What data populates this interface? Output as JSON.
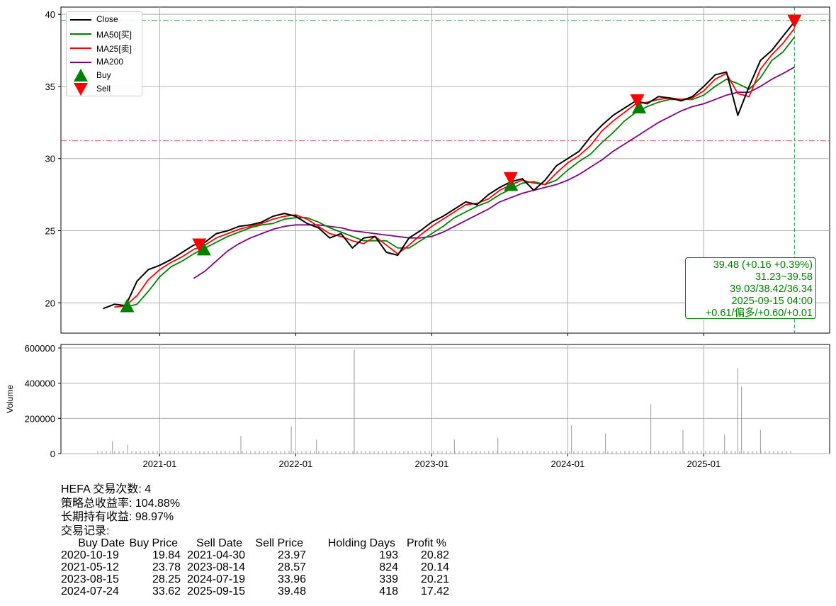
{
  "chart_data": [
    {
      "type": "line",
      "ylim": [
        17.9,
        40.5
      ],
      "xlim": [
        "2020-06-10",
        "2025-11-20"
      ],
      "grid": true,
      "y_ticks": [
        "20",
        "25",
        "30",
        "35",
        "40"
      ],
      "y_tick_values": [
        20,
        25,
        30,
        35,
        40
      ],
      "x_ticks": [
        "2021-01",
        "2022-01",
        "2023-01",
        "2024-01",
        "2025-01"
      ],
      "legend_position": "top-left",
      "legend": [
        "Close",
        "MA50[买]",
        "MA25[卖]",
        "MA200",
        "Buy",
        "Sell"
      ],
      "colors": {
        "Close": "#000000",
        "MA50": "#008000",
        "MA25": "#ff0000",
        "MA200": "#800080",
        "Buy": "#008000",
        "Sell": "#ff0000"
      },
      "dates": [
        "2020-08",
        "2020-09",
        "2020-10",
        "2020-11",
        "2020-12",
        "2021-01",
        "2021-02",
        "2021-03",
        "2021-04",
        "2021-05",
        "2021-06",
        "2021-07",
        "2021-08",
        "2021-09",
        "2021-10",
        "2021-11",
        "2021-12",
        "2022-01",
        "2022-02",
        "2022-03",
        "2022-04",
        "2022-05",
        "2022-06",
        "2022-07",
        "2022-08",
        "2022-09",
        "2022-10",
        "2022-11",
        "2022-12",
        "2023-01",
        "2023-02",
        "2023-03",
        "2023-04",
        "2023-05",
        "2023-06",
        "2023-07",
        "2023-08",
        "2023-09",
        "2023-10",
        "2023-11",
        "2023-12",
        "2024-01",
        "2024-02",
        "2024-03",
        "2024-04",
        "2024-05",
        "2024-06",
        "2024-07",
        "2024-08",
        "2024-09",
        "2024-10",
        "2024-11",
        "2024-12",
        "2025-01",
        "2025-02",
        "2025-03",
        "2025-04",
        "2025-05",
        "2025-06",
        "2025-07",
        "2025-08",
        "2025-09-15"
      ],
      "series": [
        {
          "name": "Close",
          "values": [
            19.6,
            19.9,
            19.8,
            21.5,
            22.3,
            22.6,
            23.0,
            23.5,
            24.0,
            24.2,
            24.8,
            25.0,
            25.3,
            25.4,
            25.6,
            26.0,
            26.2,
            26.0,
            25.5,
            25.2,
            24.5,
            24.8,
            23.8,
            24.5,
            24.6,
            23.5,
            23.3,
            24.5,
            25.0,
            25.6,
            26.0,
            26.5,
            27.0,
            26.8,
            27.5,
            28.0,
            28.4,
            28.6,
            27.8,
            28.5,
            29.5,
            30.0,
            30.5,
            31.5,
            32.3,
            33.0,
            33.5,
            34.0,
            33.8,
            34.3,
            34.2,
            34.0,
            34.3,
            35.0,
            35.8,
            36.0,
            33.0,
            35.0,
            36.8,
            37.5,
            38.5,
            39.48
          ]
        },
        {
          "name": "MA50",
          "values": [
            null,
            null,
            19.7,
            19.9,
            20.8,
            21.8,
            22.5,
            22.9,
            23.4,
            23.8,
            24.2,
            24.6,
            24.9,
            25.2,
            25.4,
            25.5,
            25.8,
            25.9,
            25.9,
            25.6,
            25.2,
            24.9,
            24.6,
            24.3,
            24.3,
            24.3,
            23.8,
            23.8,
            24.3,
            24.8,
            25.3,
            25.9,
            26.3,
            26.7,
            27.0,
            27.5,
            27.9,
            28.3,
            28.4,
            28.2,
            28.5,
            29.2,
            29.8,
            30.3,
            31.1,
            31.8,
            32.6,
            33.2,
            33.6,
            33.9,
            34.1,
            34.1,
            34.1,
            34.4,
            35.0,
            35.5,
            35.2,
            34.8,
            35.6,
            36.8,
            37.4,
            38.42
          ]
        },
        {
          "name": "MA25",
          "values": [
            null,
            19.7,
            19.8,
            20.5,
            21.6,
            22.3,
            22.8,
            23.2,
            23.7,
            24.0,
            24.5,
            24.8,
            25.1,
            25.3,
            25.5,
            25.8,
            26.0,
            26.1,
            25.8,
            25.3,
            24.8,
            24.6,
            24.3,
            24.1,
            24.6,
            24.0,
            23.4,
            24.0,
            24.7,
            25.3,
            25.8,
            26.3,
            26.8,
            26.9,
            27.2,
            27.8,
            28.2,
            28.5,
            28.3,
            28.2,
            29.0,
            29.7,
            30.2,
            30.9,
            31.9,
            32.6,
            33.2,
            33.8,
            33.9,
            34.1,
            34.2,
            34.1,
            34.2,
            34.7,
            35.5,
            35.9,
            34.5,
            34.3,
            36.2,
            37.2,
            38.0,
            39.03
          ]
        },
        {
          "name": "MA200",
          "values": [
            null,
            null,
            null,
            null,
            null,
            null,
            null,
            null,
            21.7,
            22.2,
            22.9,
            23.6,
            24.1,
            24.5,
            24.8,
            25.1,
            25.3,
            25.4,
            25.4,
            25.4,
            25.3,
            25.2,
            25.0,
            24.9,
            24.8,
            24.7,
            24.6,
            24.5,
            24.5,
            24.6,
            24.9,
            25.3,
            25.7,
            26.1,
            26.5,
            27.0,
            27.3,
            27.6,
            27.8,
            28.0,
            28.2,
            28.5,
            28.9,
            29.4,
            29.9,
            30.5,
            31.0,
            31.5,
            32.0,
            32.5,
            32.9,
            33.3,
            33.6,
            33.8,
            34.1,
            34.4,
            34.6,
            34.6,
            35.0,
            35.5,
            35.9,
            36.34
          ]
        }
      ],
      "buy_points": [
        {
          "date": "2020-10-19",
          "price": 19.84
        },
        {
          "date": "2021-05-12",
          "price": 23.78
        },
        {
          "date": "2023-08-15",
          "price": 28.25
        },
        {
          "date": "2024-07-24",
          "price": 33.62
        }
      ],
      "sell_points": [
        {
          "date": "2021-04-30",
          "price": 23.97
        },
        {
          "date": "2023-08-14",
          "price": 28.57
        },
        {
          "date": "2024-07-19",
          "price": 33.96
        },
        {
          "date": "2025-09-15",
          "price": 39.48
        }
      ],
      "hlines": [
        {
          "value": 39.58,
          "color": "#008000"
        },
        {
          "value": 31.23,
          "color": "#d62728"
        }
      ],
      "vline": {
        "date": "2025-09-15",
        "color": "#008000"
      }
    },
    {
      "type": "bar",
      "ylabel": "Volume",
      "ylim": [
        0,
        620000
      ],
      "y_ticks": [
        "0",
        "200000",
        "400000",
        "600000"
      ],
      "y_tick_values": [
        0,
        200000,
        400000,
        600000
      ],
      "baseline_volume": 15000,
      "spikes": [
        {
          "date": "2020-09-10",
          "value": 70000
        },
        {
          "date": "2020-10-20",
          "value": 50000
        },
        {
          "date": "2021-08-20",
          "value": 100000
        },
        {
          "date": "2022-01-03",
          "value": 155000
        },
        {
          "date": "2022-03-10",
          "value": 80000
        },
        {
          "date": "2022-06-20",
          "value": 590000
        },
        {
          "date": "2023-03-15",
          "value": 80000
        },
        {
          "date": "2023-07-10",
          "value": 90000
        },
        {
          "date": "2024-01-25",
          "value": 160000
        },
        {
          "date": "2024-04-25",
          "value": 115000
        },
        {
          "date": "2024-08-25",
          "value": 280000
        },
        {
          "date": "2024-11-20",
          "value": 135000
        },
        {
          "date": "2025-03-10",
          "value": 110000
        },
        {
          "date": "2025-04-15",
          "value": 485000
        },
        {
          "date": "2025-04-25",
          "value": 380000
        },
        {
          "date": "2025-06-15",
          "value": 135000
        }
      ]
    }
  ],
  "info_box": {
    "line1": "39.48 (+0.16 +0.39%)",
    "line2": "31.23~39.58",
    "line3": "39.03/38.42/36.34",
    "line4": "2025-09-15 04:00",
    "line5": "+0.61/偏多/+0.60/+0.01"
  },
  "summary": {
    "line1": "HEFA 交易次数: 4",
    "line2": "策略总收益率: 104.88%",
    "line3": "长期持有收益: 98.97%",
    "line4": "交易记录:",
    "headers": [
      "Buy Date",
      "Buy Price",
      "Sell Date",
      "Sell Price",
      "Holding Days",
      "Profit %"
    ],
    "rows": [
      [
        "2020-10-19",
        "19.84",
        "2021-04-30",
        "23.97",
        "193",
        "20.82"
      ],
      [
        "2021-05-12",
        "23.78",
        "2023-08-14",
        "28.57",
        "824",
        "20.14"
      ],
      [
        "2023-08-15",
        "28.25",
        "2024-07-19",
        "33.96",
        "339",
        "20.21"
      ],
      [
        "2024-07-24",
        "33.62",
        "2025-09-15",
        "39.48",
        "418",
        "17.42"
      ]
    ]
  }
}
